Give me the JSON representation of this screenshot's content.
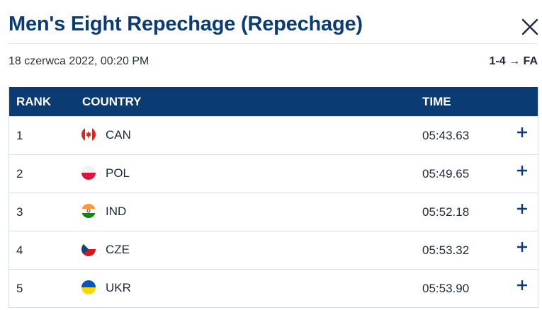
{
  "header": {
    "title": "Men's Eight Repechage (Repechage)",
    "date": "18 czerwca 2022, 00:20 PM",
    "progression": "1-4 → FA",
    "close_icon": "close-icon"
  },
  "table": {
    "columns": {
      "rank": "RANK",
      "country": "COUNTRY",
      "time": "TIME"
    },
    "header_color": "#0b3b73",
    "rows": [
      {
        "rank": "1",
        "country": "CAN",
        "time": "05:43.63",
        "flag": "canada-flag-icon"
      },
      {
        "rank": "2",
        "country": "POL",
        "time": "05:49.65",
        "flag": "poland-flag-icon"
      },
      {
        "rank": "3",
        "country": "IND",
        "time": "05:52.18",
        "flag": "india-flag-icon"
      },
      {
        "rank": "4",
        "country": "CZE",
        "time": "05:53.32",
        "flag": "czechia-flag-icon"
      },
      {
        "rank": "5",
        "country": "UKR",
        "time": "05:53.90",
        "flag": "ukraine-flag-icon"
      }
    ],
    "expand_icon": "plus-icon"
  }
}
